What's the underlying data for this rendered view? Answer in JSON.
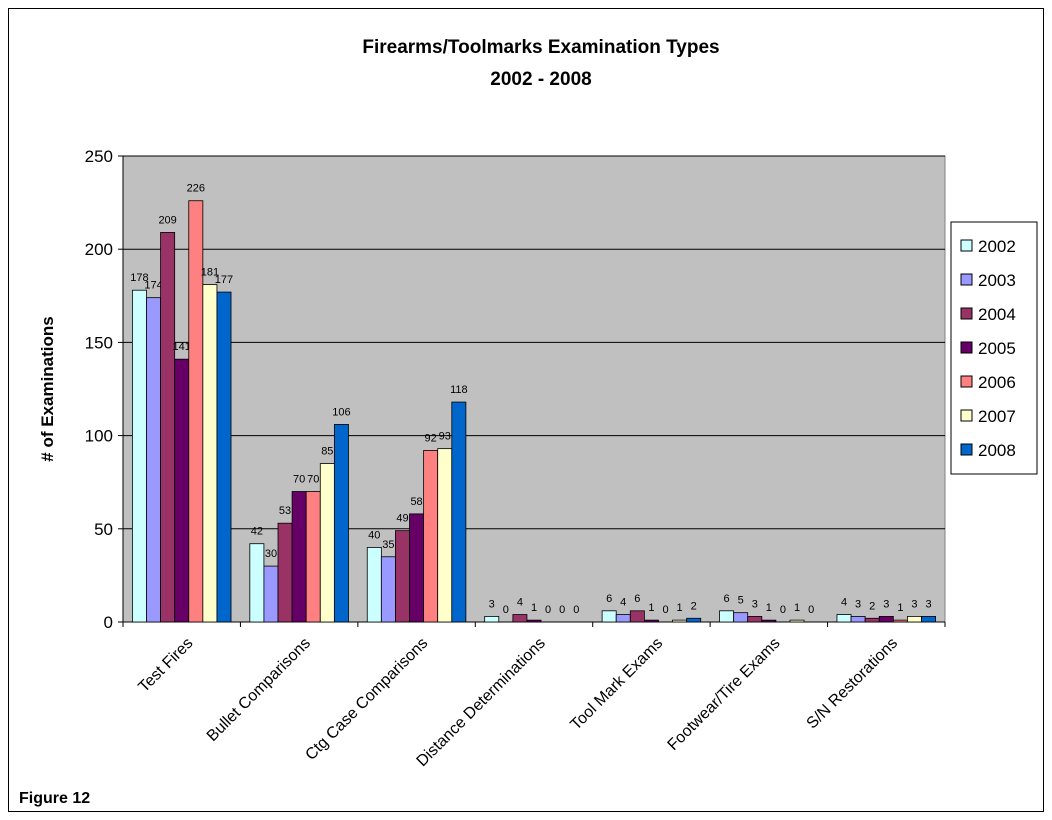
{
  "chart_data": {
    "type": "bar",
    "title": "Firearms/Toolmarks Examination Types",
    "subtitle": "2002 - 2008",
    "ylabel": "# of Examinations",
    "xlabel": "",
    "ylim": [
      0,
      250
    ],
    "yticks": [
      0,
      50,
      100,
      150,
      200,
      250
    ],
    "grid": true,
    "legend_position": "right",
    "categories": [
      "Test Fires",
      "Bullet Comparisons",
      "Ctg Case Comparisons",
      "Distance Determinations",
      "Tool Mark Exams",
      "Footwear/Tire Exams",
      "S/N Restorations"
    ],
    "series": [
      {
        "name": "2002",
        "color": "#CCFFFF",
        "values": [
          178,
          42,
          40,
          3,
          6,
          6,
          4
        ]
      },
      {
        "name": "2003",
        "color": "#9999FF",
        "values": [
          174,
          30,
          35,
          0,
          4,
          5,
          3
        ]
      },
      {
        "name": "2004",
        "color": "#993366",
        "values": [
          209,
          53,
          49,
          4,
          6,
          3,
          2
        ]
      },
      {
        "name": "2005",
        "color": "#660066",
        "values": [
          141,
          70,
          58,
          1,
          1,
          1,
          3
        ]
      },
      {
        "name": "2006",
        "color": "#FF8080",
        "values": [
          226,
          70,
          92,
          0,
          0,
          0,
          1
        ]
      },
      {
        "name": "2007",
        "color": "#FFFFCC",
        "values": [
          181,
          85,
          93,
          0,
          1,
          1,
          3
        ]
      },
      {
        "name": "2008",
        "color": "#0066CC",
        "values": [
          177,
          106,
          118,
          0,
          2,
          0,
          3
        ]
      }
    ],
    "plot_background": "#C0C0C0"
  },
  "figure_label": "Figure 12"
}
